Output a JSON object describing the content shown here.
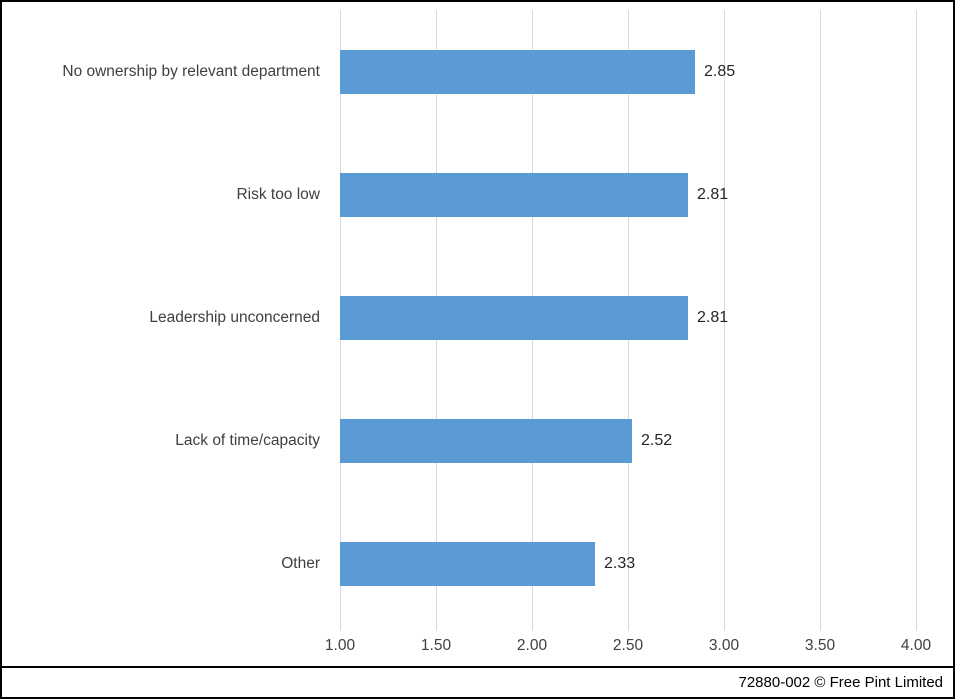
{
  "footer": {
    "credit": "72880-002 © Free Pint Limited"
  },
  "chart_data": {
    "type": "bar",
    "orientation": "horizontal",
    "title": "",
    "xlabel": "",
    "ylabel": "",
    "categories": [
      "No ownership by relevant department",
      "Risk too low",
      "Leadership unconcerned",
      "Lack of time/capacity",
      "Other"
    ],
    "values": [
      2.85,
      2.81,
      2.81,
      2.52,
      2.33
    ],
    "data_labels": [
      "2.85",
      "2.81",
      "2.81",
      "2.52",
      "2.33"
    ],
    "xlim": [
      1.0,
      4.0
    ],
    "x_ticks": [
      1.0,
      1.5,
      2.0,
      2.5,
      3.0,
      3.5,
      4.0
    ],
    "x_tick_labels": [
      "1.00",
      "1.50",
      "2.00",
      "2.50",
      "3.00",
      "3.50",
      "4.00"
    ],
    "grid": "vertical-only",
    "legend": null,
    "bar_color": "#5b9bd5",
    "gridline_color": "#d9d9d9",
    "label_color": "#3f3f3f",
    "data_label_color": "#262626"
  }
}
